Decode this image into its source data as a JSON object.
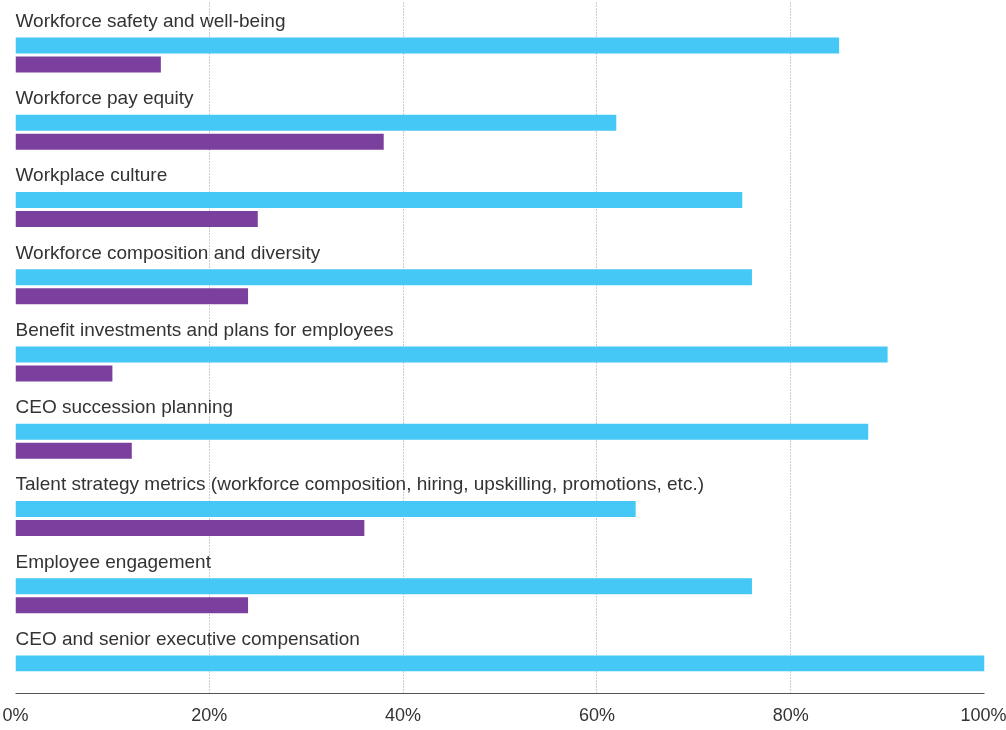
{
  "chart_data": {
    "type": "bar",
    "orientation": "horizontal",
    "stacked": false,
    "categories": [
      "Workforce safety and well-being",
      "Workforce pay equity",
      "Workplace culture",
      "Workforce composition and diversity",
      "Benefit investments and plans for employees",
      "CEO succession planning",
      "Talent strategy metrics (workforce composition, hiring, upskilling, promotions, etc.)",
      "Employee engagement",
      "CEO and senior executive compensation"
    ],
    "series": [
      {
        "color": "#45c8f5",
        "values": [
          85,
          62,
          75,
          76,
          90,
          88,
          64,
          76,
          100
        ]
      },
      {
        "color": "#7b3f9e",
        "values": [
          15,
          38,
          25,
          24,
          10,
          12,
          36,
          24,
          0
        ]
      }
    ],
    "xlim": [
      0,
      100
    ],
    "xticks": [
      {
        "value": 0,
        "label": "0%"
      },
      {
        "value": 20,
        "label": "20%"
      },
      {
        "value": 40,
        "label": "40%"
      },
      {
        "value": 60,
        "label": "60%"
      },
      {
        "value": 80,
        "label": "80%"
      },
      {
        "value": 100,
        "label": "100%"
      }
    ],
    "grid": "x"
  }
}
